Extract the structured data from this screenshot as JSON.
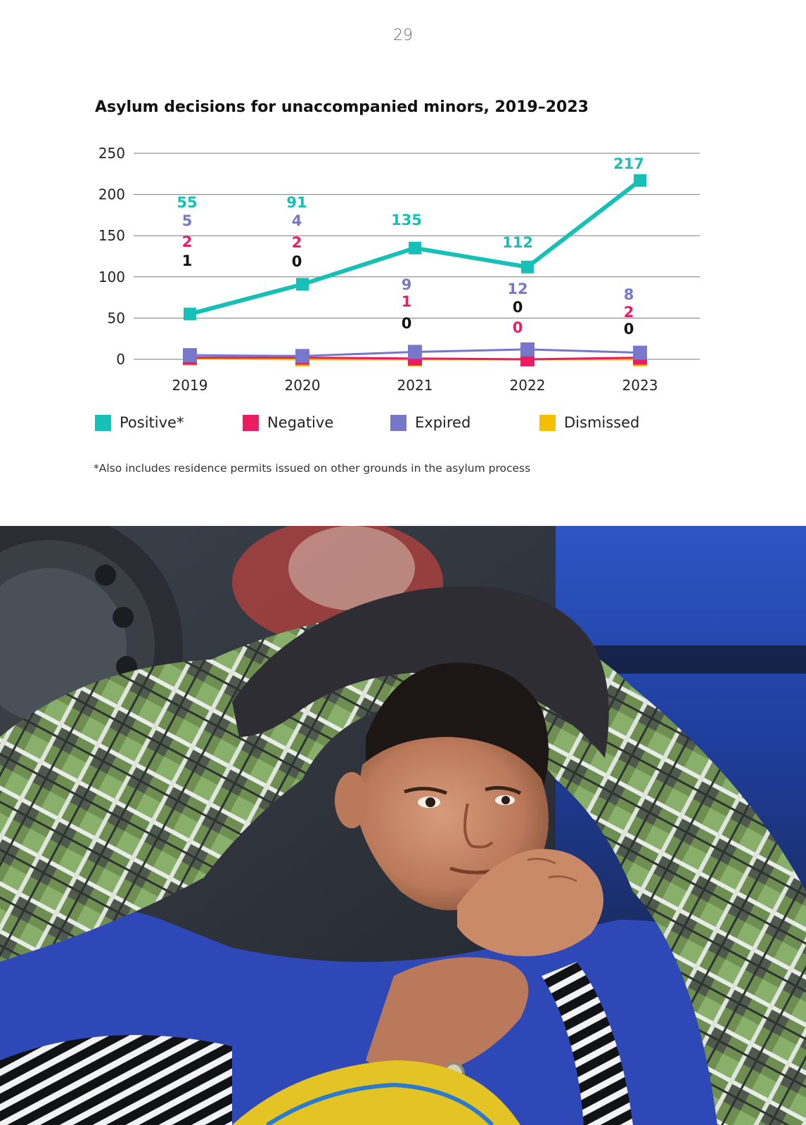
{
  "page": {
    "number": "29"
  },
  "chart_data": {
    "type": "line",
    "title": "Asylum decisions for unaccompanied minors, 2019–2023",
    "xlabel": "",
    "ylabel": "",
    "x": [
      "2019",
      "2020",
      "2021",
      "2022",
      "2023"
    ],
    "ylim": [
      0,
      250
    ],
    "yticks": [
      "0",
      "50",
      "100",
      "150",
      "200",
      "250"
    ],
    "grid": true,
    "legend_position": "bottom",
    "series": [
      {
        "key": "positive",
        "name": "Positive*",
        "color": "#16c0b6",
        "values": [
          55,
          91,
          135,
          112,
          217
        ],
        "labels": [
          "55",
          "91",
          "135",
          "112",
          "217"
        ]
      },
      {
        "key": "negative",
        "name": "Negative",
        "color": "#ec1c63",
        "values": [
          2,
          2,
          1,
          0,
          2
        ],
        "labels": [
          "2",
          "2",
          "1",
          "0",
          "2"
        ]
      },
      {
        "key": "expired",
        "name": "Expired",
        "color": "#7777cc",
        "values": [
          5,
          4,
          9,
          12,
          8
        ],
        "labels": [
          "5",
          "4",
          "9",
          "12",
          "8"
        ]
      },
      {
        "key": "dismissed",
        "name": "Dismissed",
        "color": "#f5bf00",
        "values": [
          1,
          0,
          0,
          0,
          0
        ],
        "labels": [
          "1",
          "0",
          "0",
          "0",
          "0"
        ]
      }
    ]
  },
  "legend": {
    "positive": "Positive*",
    "negative": "Negative",
    "expired": "Expired",
    "dismissed": "Dismissed"
  },
  "footnote": "*Also includes residence permits issued on other grounds in the asylum process",
  "photo": {
    "subject": "boy-with-jacket-over-head"
  }
}
